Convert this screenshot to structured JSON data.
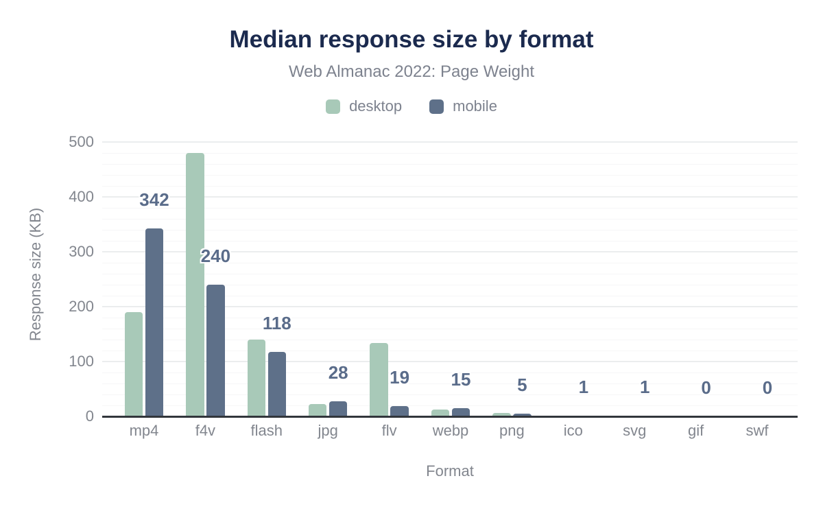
{
  "chart_data": {
    "type": "bar",
    "title": "Median response size by format",
    "subtitle": "Web Almanac 2022: Page Weight",
    "xlabel": "Format",
    "ylabel": "Response size (KB)",
    "categories": [
      "mp4",
      "f4v",
      "flash",
      "jpg",
      "flv",
      "webp",
      "png",
      "ico",
      "svg",
      "gif",
      "swf"
    ],
    "series": [
      {
        "name": "desktop",
        "color": "#a8c9b8",
        "values": [
          190,
          480,
          140,
          22,
          134,
          12,
          6,
          1,
          1,
          0,
          0
        ]
      },
      {
        "name": "mobile",
        "color": "#5e7089",
        "values": [
          342,
          240,
          118,
          28,
          19,
          15,
          5,
          1,
          1,
          0,
          0
        ]
      }
    ],
    "data_labels": {
      "on_series": "mobile",
      "values": [
        "342",
        "240",
        "118",
        "28",
        "19",
        "15",
        "5",
        "1",
        "1",
        "0",
        "0"
      ]
    },
    "ylim": [
      0,
      500
    ],
    "ytick_interval": 100,
    "minor_gridline_interval": 20,
    "grid": true,
    "legend_position": "top"
  },
  "colors": {
    "background": "#ffffff",
    "title": "#1b2a4e",
    "subtitle": "#7d828e",
    "axis_text": "#82868e",
    "axis_line": "#32363c",
    "major_gridline": "#ebedee",
    "minor_gridline": "#f6f6f7",
    "data_label": "#5a6c8a",
    "desktop": "#a8c9b8",
    "mobile": "#5e7089"
  }
}
